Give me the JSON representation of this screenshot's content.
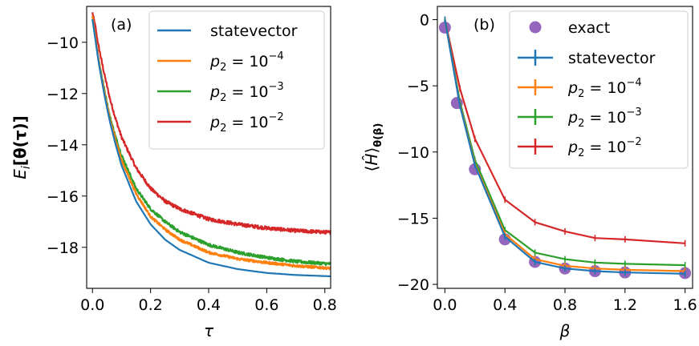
{
  "chart_data": [
    {
      "type": "line",
      "panel_label": "(a)",
      "xlabel": "τ",
      "ylabel_prefix": "E",
      "ylabel_sub": "i",
      "ylabel_main": "[θ(τ)]",
      "xlim": [
        -0.02,
        0.82
      ],
      "ylim": [
        -19.6,
        -8.6
      ],
      "xticks": [
        0.0,
        0.2,
        0.4,
        0.6,
        0.8
      ],
      "xtick_labels": [
        "0.0",
        "0.2",
        "0.4",
        "0.6",
        "0.8"
      ],
      "yticks": [
        -10,
        -12,
        -14,
        -16,
        -18
      ],
      "ytick_labels": [
        "−10",
        "−12",
        "−14",
        "−16",
        "−18"
      ],
      "legend": {
        "placement": "top-right"
      },
      "series": [
        {
          "name": "statevector",
          "p_exp": null,
          "color": "#1f77b4",
          "noise": 0,
          "x": [
            0,
            0.01,
            0.02,
            0.04,
            0.06,
            0.08,
            0.1,
            0.15,
            0.2,
            0.25,
            0.3,
            0.4,
            0.5,
            0.6,
            0.7,
            0.82
          ],
          "y": [
            -9.1,
            -9.9,
            -10.7,
            -12.0,
            -13.1,
            -14.0,
            -14.8,
            -16.2,
            -17.1,
            -17.7,
            -18.1,
            -18.6,
            -18.85,
            -19.0,
            -19.08,
            -19.13
          ]
        },
        {
          "name": "p2 = 10^-4",
          "p_exp": "−4",
          "color": "#ff7f0e",
          "noise": 0.05,
          "x": [
            0,
            0.01,
            0.02,
            0.04,
            0.06,
            0.08,
            0.1,
            0.15,
            0.2,
            0.25,
            0.3,
            0.4,
            0.5,
            0.6,
            0.7,
            0.82
          ],
          "y": [
            -9.0,
            -9.8,
            -10.6,
            -11.9,
            -13.0,
            -13.8,
            -14.6,
            -15.9,
            -16.8,
            -17.3,
            -17.7,
            -18.2,
            -18.45,
            -18.6,
            -18.72,
            -18.82
          ]
        },
        {
          "name": "p2 = 10^-3",
          "p_exp": "−3",
          "color": "#2ca02c",
          "noise": 0.06,
          "x": [
            0,
            0.01,
            0.02,
            0.04,
            0.06,
            0.08,
            0.1,
            0.15,
            0.2,
            0.25,
            0.3,
            0.4,
            0.5,
            0.6,
            0.7,
            0.82
          ],
          "y": [
            -9.0,
            -9.8,
            -10.6,
            -11.8,
            -12.9,
            -13.7,
            -14.4,
            -15.7,
            -16.5,
            -17.0,
            -17.4,
            -17.9,
            -18.2,
            -18.4,
            -18.55,
            -18.65
          ]
        },
        {
          "name": "p2 = 10^-2",
          "p_exp": "−2",
          "color": "#d62728",
          "noise": 0.07,
          "x": [
            0,
            0.01,
            0.02,
            0.04,
            0.06,
            0.08,
            0.1,
            0.15,
            0.2,
            0.25,
            0.3,
            0.4,
            0.5,
            0.6,
            0.7,
            0.82
          ],
          "y": [
            -8.85,
            -9.4,
            -10.1,
            -11.2,
            -12.2,
            -13.0,
            -13.7,
            -14.9,
            -15.7,
            -16.2,
            -16.5,
            -16.9,
            -17.1,
            -17.25,
            -17.35,
            -17.42
          ]
        }
      ]
    },
    {
      "type": "line",
      "panel_label": "(b)",
      "xlabel": "β",
      "ylabel": "⟨Ĥ⟩θ(β)",
      "xlim": [
        -0.05,
        1.65
      ],
      "ylim": [
        -20.3,
        1.0
      ],
      "xticks": [
        0.0,
        0.4,
        0.8,
        1.2,
        1.6
      ],
      "xtick_labels": [
        "0.0",
        "0.4",
        "0.8",
        "1.2",
        "1.6"
      ],
      "yticks": [
        0,
        -5,
        -10,
        -15,
        -20
      ],
      "ytick_labels": [
        "0",
        "−5",
        "−10",
        "−15",
        "−20"
      ],
      "legend": {
        "placement": "top-right"
      },
      "exact": {
        "name": "exact",
        "color": "#9467bd",
        "x": [
          0.0,
          0.08,
          0.2,
          0.4,
          0.6,
          0.8,
          1.0,
          1.2,
          1.6
        ],
        "y": [
          -0.6,
          -6.3,
          -11.3,
          -16.6,
          -18.3,
          -18.8,
          -19.0,
          -19.1,
          -19.15
        ]
      },
      "series": [
        {
          "name": "statevector",
          "p_exp": null,
          "color": "#1f77b4",
          "x": [
            0.0,
            0.1,
            0.2,
            0.4,
            0.6,
            0.8,
            1.0,
            1.2,
            1.6
          ],
          "y": [
            0.0,
            -6.5,
            -11.0,
            -16.4,
            -18.3,
            -18.8,
            -19.0,
            -19.1,
            -19.2
          ]
        },
        {
          "name": "p2 = 10^-4",
          "p_exp": "−4",
          "color": "#ff7f0e",
          "x": [
            0.0,
            0.1,
            0.2,
            0.4,
            0.6,
            0.8,
            1.0,
            1.2,
            1.6
          ],
          "y": [
            0.0,
            -6.4,
            -10.9,
            -16.2,
            -18.1,
            -18.6,
            -18.8,
            -18.9,
            -19.0
          ]
        },
        {
          "name": "p2 = 10^-3",
          "p_exp": "−3",
          "color": "#2ca02c",
          "x": [
            0.0,
            0.1,
            0.2,
            0.4,
            0.6,
            0.8,
            1.0,
            1.2,
            1.6
          ],
          "y": [
            0.0,
            -6.2,
            -10.6,
            -15.9,
            -17.6,
            -18.1,
            -18.35,
            -18.45,
            -18.55
          ]
        },
        {
          "name": "p2 = 10^-2",
          "p_exp": "−2",
          "color": "#d62728",
          "x": [
            0.0,
            0.1,
            0.2,
            0.4,
            0.6,
            0.8,
            1.0,
            1.2,
            1.6
          ],
          "y": [
            0.0,
            -5.2,
            -9.0,
            -13.6,
            -15.3,
            -16.0,
            -16.5,
            -16.6,
            -16.9
          ]
        }
      ]
    }
  ]
}
